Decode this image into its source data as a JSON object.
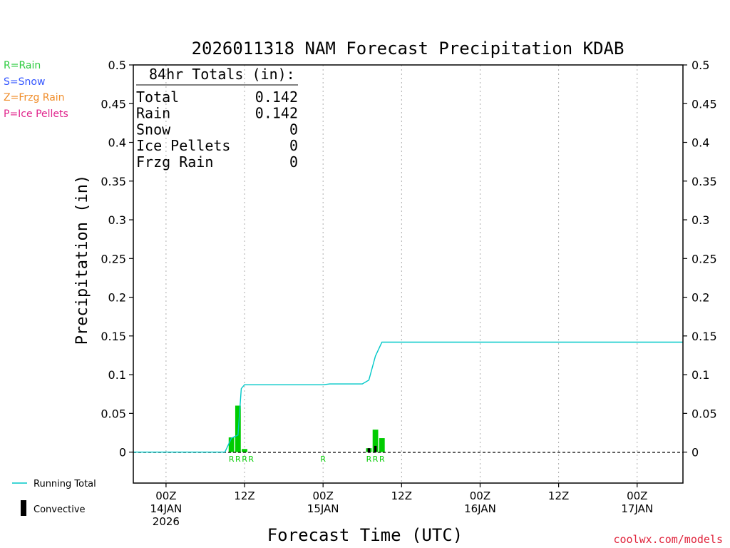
{
  "title": "2026011318 NAM Forecast Precipitation KDAB",
  "totals_box": {
    "heading": "84hr Totals (in):",
    "rows": [
      {
        "label": "Total",
        "value": "0.142"
      },
      {
        "label": "Rain",
        "value": "0.142"
      },
      {
        "label": "Snow",
        "value": "0"
      },
      {
        "label": "Ice Pellets",
        "value": "0"
      },
      {
        "label": "Frzg Rain",
        "value": "0"
      }
    ]
  },
  "type_key": [
    {
      "text": "R=Rain",
      "color": "#2ecc40"
    },
    {
      "text": "S=Snow",
      "color": "#3355ff"
    },
    {
      "text": "Z=Frzg Rain",
      "color": "#f08c28"
    },
    {
      "text": "P=Ice Pellets",
      "color": "#e0248c"
    }
  ],
  "bottom_legend": {
    "running_total": "Running Total",
    "convective": "Convective"
  },
  "credit": "coolwx.com/models",
  "colors": {
    "precip_bar": "#00cc00",
    "convective_bar": "#000000",
    "running_total": "#00c8c8",
    "type_letters": "#00cc00",
    "credit": "#e0243c"
  },
  "chart_data": {
    "type": "bar",
    "title": "2026011318 NAM Forecast Precipitation KDAB",
    "xlabel": "Forecast Time (UTC)",
    "ylabel": "Precipitation (in)",
    "ylim": [
      -0.04,
      0.5
    ],
    "xlim_hours_from_14JAN00Z": [
      -5,
      79
    ],
    "yticks": [
      0,
      0.05,
      0.1,
      0.15,
      0.2,
      0.25,
      0.3,
      0.35,
      0.4,
      0.45,
      0.5
    ],
    "ytick_labels": [
      "0",
      "0.05",
      "0.1",
      "0.15",
      "0.2",
      "0.25",
      "0.3",
      "0.35",
      "0.4",
      "0.45",
      "0.5"
    ],
    "xticks": [
      {
        "hour": 0,
        "lines": [
          "00Z",
          "14JAN",
          "2026"
        ]
      },
      {
        "hour": 12,
        "lines": [
          "12Z"
        ]
      },
      {
        "hour": 24,
        "lines": [
          "00Z",
          "15JAN"
        ]
      },
      {
        "hour": 36,
        "lines": [
          "12Z"
        ]
      },
      {
        "hour": 48,
        "lines": [
          "00Z",
          "16JAN"
        ]
      },
      {
        "hour": 60,
        "lines": [
          "12Z"
        ]
      },
      {
        "hour": 72,
        "lines": [
          "00Z",
          "17JAN"
        ]
      }
    ],
    "grid": "vertical dotted at tick positions",
    "precip_bars": [
      {
        "hour": 10,
        "value": 0.019
      },
      {
        "hour": 11,
        "value": 0.06
      },
      {
        "hour": 12,
        "value": 0.004
      },
      {
        "hour": 31,
        "value": 0.005
      },
      {
        "hour": 32,
        "value": 0.029
      },
      {
        "hour": 33,
        "value": 0.018
      }
    ],
    "convective_bars": [
      {
        "hour": 31,
        "value": 0.005
      },
      {
        "hour": 32,
        "value": 0.008
      }
    ],
    "running_total": {
      "hours": [
        -5,
        9,
        10,
        11,
        11.5,
        12,
        18,
        24,
        25,
        30,
        31,
        32,
        33,
        79
      ],
      "values": [
        0,
        0,
        0.018,
        0.022,
        0.082,
        0.087,
        0.087,
        0.087,
        0.088,
        0.088,
        0.093,
        0.124,
        0.142,
        0.142
      ]
    },
    "type_letters": [
      {
        "hour": 10,
        "letter": "R"
      },
      {
        "hour": 11,
        "letter": "R"
      },
      {
        "hour": 12,
        "letter": "R"
      },
      {
        "hour": 13,
        "letter": "R"
      },
      {
        "hour": 24,
        "letter": "R"
      },
      {
        "hour": 31,
        "letter": "R"
      },
      {
        "hour": 32,
        "letter": "R"
      },
      {
        "hour": 33,
        "letter": "R"
      }
    ]
  }
}
